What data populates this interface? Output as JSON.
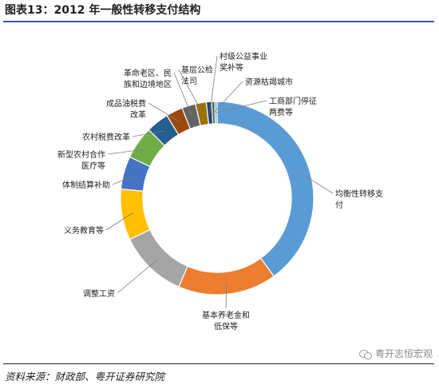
{
  "title": "图表13：2012 年一般性转移支付结构",
  "source": "资料来源：财政部、粤开证券研究院",
  "watermark": "粤开志恒宏观",
  "chart_data": {
    "type": "donut",
    "title": "图表13：2012 年一般性转移支付结构",
    "legend": "none",
    "slices": [
      {
        "name": "均衡性转移支付",
        "lines": [
          "均衡性转移支",
          "付"
        ],
        "value": 40.0,
        "color": "#5b9bd5"
      },
      {
        "name": "基本养老金和低保等",
        "lines": [
          "基本养老金和",
          "低保等"
        ],
        "value": 16.5,
        "color": "#ed7d31"
      },
      {
        "name": "调整工资",
        "lines": [
          "调整工资"
        ],
        "value": 11.5,
        "color": "#a5a5a5"
      },
      {
        "name": "义务教育等",
        "lines": [
          "义务教育等"
        ],
        "value": 8.5,
        "color": "#ffc000"
      },
      {
        "name": "体制结算补助",
        "lines": [
          "体制结算补助"
        ],
        "value": 5.5,
        "color": "#4472c4"
      },
      {
        "name": "新型农村合作医疗等",
        "lines": [
          "新型农村合作",
          "医疗等"
        ],
        "value": 5.5,
        "color": "#70ad47"
      },
      {
        "name": "农村税费改革",
        "lines": [
          "农村税费改革"
        ],
        "value": 3.8,
        "color": "#255e91"
      },
      {
        "name": "成品油税费改革",
        "lines": [
          "成品油税费",
          "改革"
        ],
        "value": 2.8,
        "color": "#9e480e"
      },
      {
        "name": "革命老区、民族和边境地区",
        "lines": [
          "革命老区、民",
          "族和边境地区"
        ],
        "value": 2.3,
        "color": "#636363"
      },
      {
        "name": "基层公检法司",
        "lines": [
          "基层公检",
          "法司"
        ],
        "value": 1.8,
        "color": "#997300"
      },
      {
        "name": "村级公益事业奖补等",
        "lines": [
          "村级公益事业",
          "奖补等"
        ],
        "value": 0.9,
        "color": "#264478"
      },
      {
        "name": "资源枯竭城市",
        "lines": [
          "资源枯竭城市"
        ],
        "value": 0.5,
        "color": "#43682b"
      },
      {
        "name": "工商部门停征两费等",
        "lines": [
          "工商部门停征",
          "两费等"
        ],
        "value": 0.4,
        "color": "#7cafdd"
      }
    ]
  }
}
